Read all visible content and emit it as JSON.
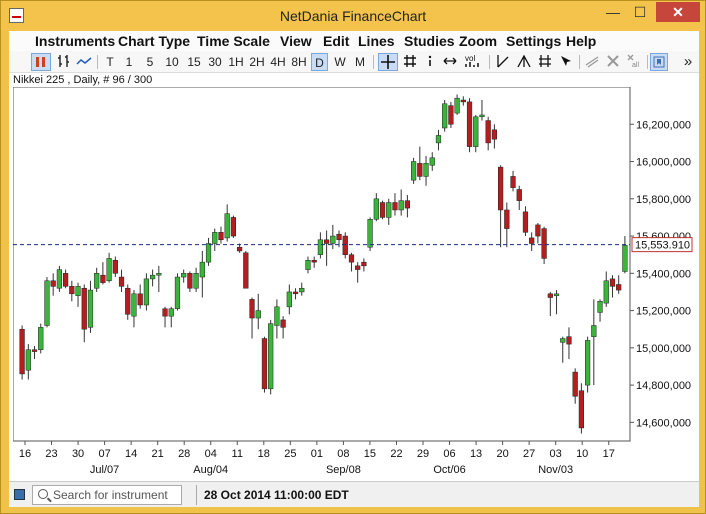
{
  "window": {
    "title": "NetDania FinanceChart",
    "min_glyph": "—",
    "max_glyph": "☐",
    "close_glyph": "✕"
  },
  "menu": [
    "Instruments",
    "Chart Type",
    "Time Scale",
    "View",
    "Edit",
    "Lines",
    "Studies",
    "Zoom",
    "Settings",
    "Help"
  ],
  "toolbar": {
    "intervals": [
      "T",
      "1",
      "5",
      "10",
      "15",
      "30",
      "1H",
      "2H",
      "4H",
      "8H",
      "D",
      "W",
      "M"
    ],
    "selected_interval": "D",
    "icons": [
      "candles-icon",
      "ohlc-bars-icon",
      "line-chart-icon",
      "crosshair-icon",
      "grid-icon",
      "info-icon",
      "pan-icon",
      "volume-icon",
      "trendline-icon",
      "ray-icon",
      "fib-icon",
      "cursor-icon",
      "draw-icon",
      "delete-icon",
      "remove-all-icon",
      "bookmark-icon",
      "more-icon"
    ],
    "vol_label": "vol",
    "mall_label": "all",
    "more_glyph": "»"
  },
  "chart_header": "Nikkei 225 , Daily, # 96 / 300",
  "current_price_label": "15,553.910",
  "colors": {
    "up": "#3cb43c",
    "down": "#b41e1e",
    "price_line": "#1a2a8a",
    "wick": "#333333"
  },
  "chart_data": {
    "type": "candlestick",
    "ylim": [
      14500,
      16400
    ],
    "y_ticks": [
      "16,200,000",
      "16,000,000",
      "15,800,000",
      "15,600,000",
      "15,400,000",
      "15,200,000",
      "15,000,000",
      "14,800,000",
      "14,600,000"
    ],
    "y_tick_values": [
      16200,
      16000,
      15800,
      15600,
      15400,
      15200,
      15000,
      14800,
      14600
    ],
    "x_tick_labels": [
      "16",
      "23",
      "30",
      "07",
      "14",
      "21",
      "28",
      "04",
      "11",
      "18",
      "25",
      "01",
      "08",
      "15",
      "22",
      "29",
      "06",
      "13",
      "20",
      "27",
      "03",
      "10",
      "17"
    ],
    "x_month_labels": [
      "Jul/07",
      "Aug/04",
      "Sep/08",
      "Oct/06",
      "Nov/03"
    ],
    "x_month_tick_index": [
      3,
      7,
      12,
      16,
      20
    ],
    "current_price": 15553.91,
    "candles": [
      [
        15100,
        15120,
        14830,
        14860
      ],
      [
        14880,
        15020,
        14830,
        14990
      ],
      [
        14990,
        15010,
        14940,
        14980
      ],
      [
        14990,
        15130,
        14970,
        15110
      ],
      [
        15120,
        15380,
        15110,
        15360
      ],
      [
        15360,
        15400,
        15280,
        15330
      ],
      [
        15320,
        15440,
        15300,
        15420
      ],
      [
        15400,
        15420,
        15320,
        15330
      ],
      [
        15330,
        15360,
        15250,
        15290
      ],
      [
        15280,
        15350,
        15220,
        15330
      ],
      [
        15320,
        15340,
        15030,
        15100
      ],
      [
        15110,
        15360,
        15080,
        15310
      ],
      [
        15320,
        15430,
        15300,
        15400
      ],
      [
        15390,
        15460,
        15340,
        15350
      ],
      [
        15360,
        15510,
        15350,
        15480
      ],
      [
        15470,
        15490,
        15380,
        15400
      ],
      [
        15380,
        15420,
        15300,
        15330
      ],
      [
        15320,
        15340,
        15150,
        15180
      ],
      [
        15170,
        15310,
        15110,
        15290
      ],
      [
        15290,
        15340,
        15210,
        15230
      ],
      [
        15230,
        15400,
        15200,
        15370
      ],
      [
        15370,
        15420,
        15330,
        15390
      ],
      [
        15390,
        15440,
        15300,
        15400
      ],
      [
        15210,
        15220,
        15110,
        15170
      ],
      [
        15170,
        15220,
        15110,
        15210
      ],
      [
        15210,
        15400,
        15200,
        15380
      ],
      [
        15380,
        15420,
        15350,
        15400
      ],
      [
        15400,
        15410,
        15300,
        15320
      ],
      [
        15320,
        15430,
        15300,
        15400
      ],
      [
        15380,
        15520,
        15270,
        15460
      ],
      [
        15460,
        15590,
        15440,
        15560
      ],
      [
        15560,
        15640,
        15520,
        15620
      ],
      [
        15620,
        15650,
        15560,
        15580
      ],
      [
        15590,
        15770,
        15570,
        15720
      ],
      [
        15700,
        15710,
        15590,
        15600
      ],
      [
        15540,
        15560,
        15510,
        15520
      ],
      [
        15510,
        15520,
        15320,
        15320
      ],
      [
        15260,
        15270,
        15050,
        15160
      ],
      [
        15160,
        15290,
        15100,
        15200
      ],
      [
        15050,
        15060,
        14760,
        14780
      ],
      [
        14780,
        15150,
        14750,
        15130
      ],
      [
        15120,
        15260,
        15050,
        15220
      ],
      [
        15150,
        15170,
        15050,
        15110
      ],
      [
        15220,
        15340,
        15180,
        15300
      ],
      [
        15300,
        15320,
        15260,
        15290
      ],
      [
        15300,
        15350,
        15280,
        15320
      ],
      [
        15420,
        15490,
        15400,
        15470
      ],
      [
        15470,
        15490,
        15430,
        15460
      ],
      [
        15500,
        15620,
        15480,
        15580
      ],
      [
        15580,
        15630,
        15440,
        15560
      ],
      [
        15560,
        15660,
        15530,
        15600
      ],
      [
        15610,
        15630,
        15540,
        15580
      ],
      [
        15600,
        15620,
        15480,
        15500
      ],
      [
        15500,
        15510,
        15410,
        15460
      ],
      [
        15440,
        15460,
        15350,
        15420
      ],
      [
        15460,
        15480,
        15410,
        15440
      ],
      [
        15540,
        15700,
        15520,
        15690
      ],
      [
        15690,
        15830,
        15680,
        15800
      ],
      [
        15780,
        15790,
        15690,
        15700
      ],
      [
        15700,
        15800,
        15660,
        15780
      ],
      [
        15780,
        15830,
        15710,
        15740
      ],
      [
        15740,
        15850,
        15710,
        15790
      ],
      [
        15790,
        15820,
        15700,
        15750
      ],
      [
        15900,
        16020,
        15880,
        16000
      ],
      [
        15990,
        16080,
        15900,
        15920
      ],
      [
        15920,
        16030,
        15870,
        15990
      ],
      [
        15980,
        16050,
        15950,
        16020
      ],
      [
        16100,
        16170,
        16060,
        16140
      ],
      [
        16180,
        16330,
        16160,
        16310
      ],
      [
        16300,
        16320,
        16180,
        16200
      ],
      [
        16260,
        16360,
        16250,
        16340
      ],
      [
        16330,
        16350,
        16300,
        16320
      ],
      [
        16320,
        16340,
        16050,
        16080
      ],
      [
        16080,
        16250,
        16050,
        16240
      ],
      [
        16240,
        16330,
        16220,
        16250
      ],
      [
        16220,
        16240,
        16060,
        16100
      ],
      [
        16170,
        16200,
        16070,
        16120
      ],
      [
        15970,
        15980,
        15540,
        15740
      ],
      [
        15740,
        15780,
        15540,
        15640
      ],
      [
        15920,
        15950,
        15840,
        15860
      ],
      [
        15850,
        15870,
        15740,
        15790
      ],
      [
        15730,
        15760,
        15600,
        15620
      ],
      [
        15590,
        15620,
        15520,
        15560
      ],
      [
        15660,
        15670,
        15560,
        15600
      ],
      [
        15640,
        15650,
        15450,
        15480
      ],
      [
        15290,
        15300,
        15170,
        15270
      ],
      [
        15280,
        15310,
        15180,
        15290
      ],
      [
        15030,
        15060,
        14920,
        15050
      ],
      [
        15060,
        15110,
        14940,
        15020
      ],
      [
        14870,
        14890,
        14700,
        14740
      ],
      [
        14770,
        14810,
        14540,
        14570
      ],
      [
        14800,
        15060,
        14760,
        15040
      ],
      [
        15060,
        15260,
        14800,
        15120
      ],
      [
        15190,
        15260,
        15140,
        15250
      ],
      [
        15240,
        15410,
        15220,
        15360
      ],
      [
        15370,
        15390,
        15270,
        15330
      ],
      [
        15340,
        15390,
        15290,
        15310
      ],
      [
        15410,
        15600,
        15400,
        15550
      ]
    ]
  },
  "status": {
    "search_placeholder": "Search for instrument",
    "datetime": "28 Oct 2014 11:00:00 EDT"
  }
}
